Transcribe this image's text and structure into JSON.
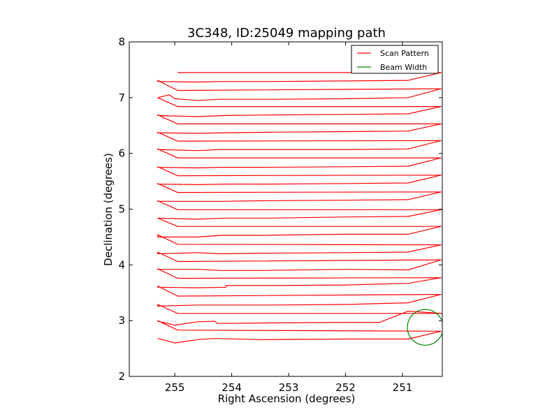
{
  "chart_data": {
    "type": "line",
    "title": "3C348, ID:25049 mapping path",
    "xlabel": "Right Ascension (degrees)",
    "ylabel": "Declination (degrees)",
    "xlim": [
      255.8,
      250.3
    ],
    "ylim": [
      2,
      8
    ],
    "x_ticks": [
      255,
      254,
      253,
      252,
      251
    ],
    "y_ticks": [
      2,
      3,
      4,
      5,
      6,
      7,
      8
    ],
    "legend_position": "top-right",
    "grid": false,
    "series": [
      {
        "name": "Scan Pattern",
        "color": "#ff0000",
        "points": [
          [
            255.3,
            2.68
          ],
          [
            255.0,
            2.6
          ],
          [
            254.6,
            2.66
          ],
          [
            254.3,
            2.68
          ],
          [
            253.5,
            2.66
          ],
          [
            252.0,
            2.67
          ],
          [
            250.9,
            2.67
          ],
          [
            250.32,
            2.81
          ],
          [
            254.95,
            2.83
          ],
          [
            255.3,
            3.0
          ],
          [
            255.3,
            2.99
          ],
          [
            255.0,
            2.92
          ],
          [
            254.6,
            2.98
          ],
          [
            254.3,
            2.99
          ],
          [
            254.25,
            2.95
          ],
          [
            253.3,
            2.96
          ],
          [
            252.0,
            2.97
          ],
          [
            251.4,
            2.97
          ],
          [
            250.9,
            3.17
          ],
          [
            250.3,
            3.13
          ],
          [
            254.95,
            3.13
          ],
          [
            255.3,
            3.29
          ],
          [
            255.3,
            3.26
          ],
          [
            254.6,
            3.28
          ],
          [
            253.3,
            3.28
          ],
          [
            252.0,
            3.29
          ],
          [
            250.9,
            3.32
          ],
          [
            250.32,
            3.47
          ],
          [
            254.95,
            3.44
          ],
          [
            255.3,
            3.62
          ],
          [
            255.3,
            3.6
          ],
          [
            254.6,
            3.59
          ],
          [
            254.1,
            3.6
          ],
          [
            254.1,
            3.63
          ],
          [
            253.3,
            3.63
          ],
          [
            252.0,
            3.64
          ],
          [
            250.9,
            3.67
          ],
          [
            250.32,
            3.77
          ],
          [
            254.95,
            3.76
          ],
          [
            255.3,
            3.93
          ],
          [
            255.3,
            3.92
          ],
          [
            254.6,
            3.92
          ],
          [
            254.2,
            3.9
          ],
          [
            253.5,
            3.9
          ],
          [
            252.0,
            3.92
          ],
          [
            250.9,
            3.91
          ],
          [
            250.32,
            4.09
          ],
          [
            254.95,
            4.06
          ],
          [
            255.3,
            4.23
          ],
          [
            255.3,
            4.2
          ],
          [
            254.6,
            4.22
          ],
          [
            254.2,
            4.2
          ],
          [
            253.5,
            4.21
          ],
          [
            252.0,
            4.22
          ],
          [
            250.9,
            4.23
          ],
          [
            250.32,
            4.36
          ],
          [
            254.95,
            4.37
          ],
          [
            255.3,
            4.54
          ],
          [
            255.3,
            4.5
          ],
          [
            254.6,
            4.5
          ],
          [
            254.2,
            4.53
          ],
          [
            253.5,
            4.53
          ],
          [
            252.0,
            4.55
          ],
          [
            250.9,
            4.55
          ],
          [
            250.32,
            4.69
          ],
          [
            254.95,
            4.69
          ],
          [
            255.3,
            4.84
          ],
          [
            255.3,
            4.84
          ],
          [
            254.6,
            4.82
          ],
          [
            254.1,
            4.84
          ],
          [
            253.3,
            4.84
          ],
          [
            252.0,
            4.86
          ],
          [
            250.9,
            4.87
          ],
          [
            250.32,
            4.99
          ],
          [
            254.95,
            4.99
          ],
          [
            255.3,
            5.15
          ],
          [
            255.3,
            5.14
          ],
          [
            254.6,
            5.14
          ],
          [
            254.2,
            5.14
          ],
          [
            253.5,
            5.15
          ],
          [
            252.0,
            5.16
          ],
          [
            250.9,
            5.17
          ],
          [
            250.32,
            5.31
          ],
          [
            254.95,
            5.3
          ],
          [
            255.3,
            5.46
          ],
          [
            255.3,
            5.45
          ],
          [
            254.6,
            5.44
          ],
          [
            254.1,
            5.45
          ],
          [
            253.3,
            5.45
          ],
          [
            252.0,
            5.46
          ],
          [
            250.9,
            5.47
          ],
          [
            250.32,
            5.61
          ],
          [
            254.95,
            5.6
          ],
          [
            255.3,
            5.76
          ],
          [
            255.3,
            5.75
          ],
          [
            254.6,
            5.74
          ],
          [
            254.2,
            5.75
          ],
          [
            253.5,
            5.75
          ],
          [
            252.0,
            5.76
          ],
          [
            250.9,
            5.77
          ],
          [
            250.32,
            5.92
          ],
          [
            254.95,
            5.92
          ],
          [
            255.3,
            6.08
          ],
          [
            255.3,
            6.07
          ],
          [
            254.6,
            6.05
          ],
          [
            254.2,
            6.07
          ],
          [
            253.5,
            6.07
          ],
          [
            252.0,
            6.07
          ],
          [
            250.9,
            6.08
          ],
          [
            250.32,
            6.23
          ],
          [
            254.95,
            6.22
          ],
          [
            255.3,
            6.38
          ],
          [
            255.3,
            6.37
          ],
          [
            254.6,
            6.36
          ],
          [
            254.1,
            6.37
          ],
          [
            253.3,
            6.38
          ],
          [
            252.0,
            6.39
          ],
          [
            250.9,
            6.4
          ],
          [
            250.32,
            6.53
          ],
          [
            254.95,
            6.53
          ],
          [
            255.3,
            6.69
          ],
          [
            255.3,
            6.68
          ],
          [
            254.6,
            6.66
          ],
          [
            254.1,
            6.68
          ],
          [
            253.3,
            6.69
          ],
          [
            252.0,
            6.7
          ],
          [
            250.9,
            6.71
          ],
          [
            250.32,
            6.84
          ],
          [
            254.95,
            6.84
          ],
          [
            255.3,
            7.0
          ],
          [
            255.1,
            7.05
          ],
          [
            255.0,
            6.98
          ],
          [
            254.6,
            6.95
          ],
          [
            254.2,
            6.97
          ],
          [
            253.3,
            6.97
          ],
          [
            252.0,
            6.98
          ],
          [
            250.9,
            7.0
          ],
          [
            250.32,
            7.16
          ],
          [
            254.95,
            7.13
          ],
          [
            255.3,
            7.31
          ],
          [
            255.3,
            7.29
          ],
          [
            254.6,
            7.28
          ],
          [
            254.2,
            7.29
          ],
          [
            253.3,
            7.29
          ],
          [
            252.0,
            7.3
          ],
          [
            250.9,
            7.31
          ],
          [
            250.32,
            7.45
          ],
          [
            254.95,
            7.45
          ]
        ]
      },
      {
        "name": "Beam Width",
        "color": "#008000",
        "center": [
          250.6,
          2.88
        ],
        "radius": 0.32
      }
    ]
  }
}
